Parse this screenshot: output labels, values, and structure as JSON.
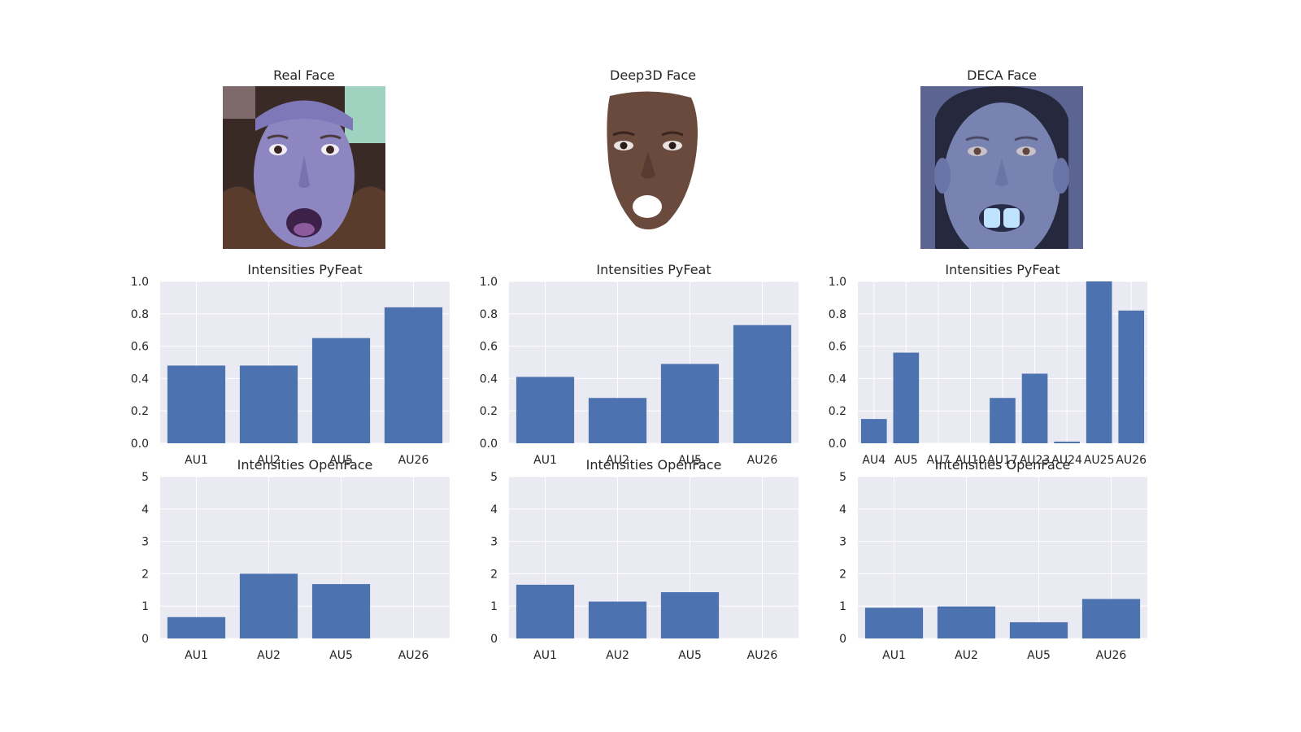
{
  "faces": [
    {
      "title": "Real Face"
    },
    {
      "title": "Deep3D Face"
    },
    {
      "title": "DECA Face"
    }
  ],
  "colors": {
    "bar": "#4c72b0",
    "axes_bg": "#eaeaf2",
    "grid": "#ffffff",
    "text": "#262626"
  },
  "chart_data": [
    {
      "type": "bar",
      "title": "Intensities PyFeat",
      "categories": [
        "AU1",
        "AU2",
        "AU5",
        "AU26"
      ],
      "values": [
        0.48,
        0.48,
        0.65,
        0.84
      ],
      "ylim": [
        0,
        1.0
      ],
      "yticks": [
        "0.0",
        "0.2",
        "0.4",
        "0.6",
        "0.8",
        "1.0"
      ],
      "grid": true
    },
    {
      "type": "bar",
      "title": "Intensities PyFeat",
      "categories": [
        "AU1",
        "AU2",
        "AU5",
        "AU26"
      ],
      "values": [
        0.41,
        0.28,
        0.49,
        0.73
      ],
      "ylim": [
        0,
        1.0
      ],
      "yticks": [
        "0.0",
        "0.2",
        "0.4",
        "0.6",
        "0.8",
        "1.0"
      ],
      "grid": true
    },
    {
      "type": "bar",
      "title": "Intensities PyFeat",
      "categories": [
        "AU4",
        "AU5",
        "AU7",
        "AU10",
        "AU17",
        "AU23",
        "AU24",
        "AU25",
        "AU26"
      ],
      "values": [
        0.15,
        0.56,
        0.0,
        0.0,
        0.28,
        0.43,
        0.01,
        1.0,
        0.82
      ],
      "ylim": [
        0,
        1.0
      ],
      "yticks": [
        "0.0",
        "0.2",
        "0.4",
        "0.6",
        "0.8",
        "1.0"
      ],
      "grid": true
    },
    {
      "type": "bar",
      "title": "Intensities OpenFace",
      "categories": [
        "AU1",
        "AU2",
        "AU5",
        "AU26"
      ],
      "values": [
        0.66,
        2.0,
        1.68,
        0.0
      ],
      "ylim": [
        0,
        5
      ],
      "yticks": [
        "0",
        "1",
        "2",
        "3",
        "4",
        "5"
      ],
      "grid": true
    },
    {
      "type": "bar",
      "title": "Intensities OpenFace",
      "categories": [
        "AU1",
        "AU2",
        "AU5",
        "AU26"
      ],
      "values": [
        1.66,
        1.14,
        1.43,
        0.0
      ],
      "ylim": [
        0,
        5
      ],
      "yticks": [
        "0",
        "1",
        "2",
        "3",
        "4",
        "5"
      ],
      "grid": true
    },
    {
      "type": "bar",
      "title": "Intensities OpenFace",
      "categories": [
        "AU1",
        "AU2",
        "AU5",
        "AU26"
      ],
      "values": [
        0.95,
        0.99,
        0.5,
        1.22
      ],
      "ylim": [
        0,
        5
      ],
      "yticks": [
        "0",
        "1",
        "2",
        "3",
        "4",
        "5"
      ],
      "grid": true
    }
  ]
}
